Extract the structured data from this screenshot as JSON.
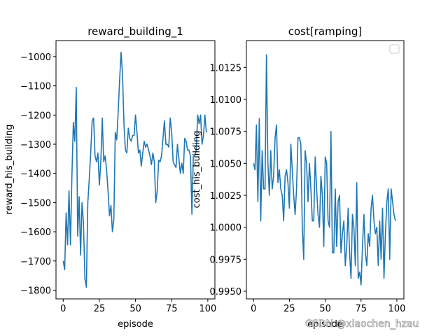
{
  "watermark": "CSDN @xiaochen_hzau",
  "chart_data": [
    {
      "type": "line",
      "title": "reward_building_1",
      "xlabel": "episode",
      "ylabel": "reward_his_building",
      "xlim": [
        -5,
        104.9
      ],
      "ylim": [
        -1830,
        -945
      ],
      "xticks": [
        0,
        25,
        50,
        75,
        100
      ],
      "xtick_labels": [
        "0",
        "25",
        "50",
        "75",
        "100"
      ],
      "yticks": [
        -1800,
        -1700,
        -1600,
        -1500,
        -1400,
        -1300,
        -1200,
        -1100,
        -1000
      ],
      "ytick_labels": [
        "−1800",
        "−1700",
        "−1600",
        "−1500",
        "−1400",
        "−1300",
        "−1200",
        "−1100",
        "−1000"
      ],
      "color": "#1f77b4",
      "series": [
        {
          "name": "reward_his_building",
          "x": [
            0,
            1,
            2,
            3,
            4,
            5,
            6,
            7,
            8,
            9,
            10,
            11,
            12,
            13,
            14,
            15,
            16,
            17,
            18,
            19,
            20,
            21,
            22,
            23,
            24,
            25,
            26,
            27,
            28,
            29,
            30,
            31,
            32,
            33,
            34,
            35,
            36,
            37,
            38,
            39,
            40,
            41,
            42,
            43,
            44,
            45,
            46,
            47,
            48,
            49,
            50,
            51,
            52,
            53,
            54,
            55,
            56,
            57,
            58,
            59,
            60,
            61,
            62,
            63,
            64,
            65,
            66,
            67,
            68,
            69,
            70,
            71,
            72,
            73,
            74,
            75,
            76,
            77,
            78,
            79,
            80,
            81,
            82,
            83,
            84,
            85,
            86,
            87,
            88,
            89,
            90,
            91,
            92,
            93,
            94,
            95,
            96,
            97,
            98,
            99
          ],
          "y": [
            -1700,
            -1730,
            -1535,
            -1645,
            -1460,
            -1645,
            -1410,
            -1225,
            -1290,
            -1105,
            -1615,
            -1480,
            -1680,
            -1500,
            -1570,
            -1760,
            -1790,
            -1500,
            -1420,
            -1330,
            -1220,
            -1210,
            -1340,
            -1360,
            -1330,
            -1440,
            -1360,
            -1210,
            -1360,
            -1340,
            -1390,
            -1460,
            -1545,
            -1510,
            -1600,
            -1560,
            -1260,
            -1285,
            -1190,
            -1080,
            -985,
            -1060,
            -1230,
            -1320,
            -1330,
            -1245,
            -1280,
            -1290,
            -1270,
            -1270,
            -1200,
            -1260,
            -1330,
            -1320,
            -1375,
            -1330,
            -1290,
            -1310,
            -1300,
            -1320,
            -1340,
            -1370,
            -1330,
            -1360,
            -1500,
            -1460,
            -1355,
            -1360,
            -1340,
            -1280,
            -1220,
            -1300,
            -1300,
            -1310,
            -1210,
            -1260,
            -1360,
            -1370,
            -1380,
            -1300,
            -1350,
            -1400,
            -1365,
            -1400,
            -1280,
            -1290,
            -1320,
            -1320,
            -1340,
            -1540,
            -1340,
            -1340,
            -1320,
            -1200,
            -1230,
            -1200,
            -1300,
            -1270,
            -1200,
            -1260
          ]
        }
      ]
    },
    {
      "type": "line",
      "title": "cost[ramping]",
      "xlabel": "episode",
      "ylabel": "cost_his_building",
      "xlim": [
        -5,
        104.9
      ],
      "ylim": [
        0.9944,
        1.0146
      ],
      "xticks": [
        0,
        25,
        50,
        75,
        100
      ],
      "xtick_labels": [
        "0",
        "25",
        "50",
        "75",
        "100"
      ],
      "yticks": [
        0.995,
        0.9975,
        1.0,
        1.0025,
        1.005,
        1.0075,
        1.01,
        1.0125
      ],
      "ytick_labels": [
        "0.9950",
        "0.9975",
        "1.0000",
        "1.0025",
        "1.0050",
        "1.0075",
        "1.0100",
        "1.0125"
      ],
      "legend": "top-right (empty)",
      "color": "#1f77b4",
      "series": [
        {
          "name": "cost_his_building",
          "x": [
            0,
            1,
            2,
            3,
            4,
            5,
            6,
            7,
            8,
            9,
            10,
            11,
            12,
            13,
            14,
            15,
            16,
            17,
            18,
            19,
            20,
            21,
            22,
            23,
            24,
            25,
            26,
            27,
            28,
            29,
            30,
            31,
            32,
            33,
            34,
            35,
            36,
            37,
            38,
            39,
            40,
            41,
            42,
            43,
            44,
            45,
            46,
            47,
            48,
            49,
            50,
            51,
            52,
            53,
            54,
            55,
            56,
            57,
            58,
            59,
            60,
            61,
            62,
            63,
            64,
            65,
            66,
            67,
            68,
            69,
            70,
            71,
            72,
            73,
            74,
            75,
            76,
            77,
            78,
            79,
            80,
            81,
            82,
            83,
            84,
            85,
            86,
            87,
            88,
            89,
            90,
            91,
            92,
            93,
            94,
            95,
            96,
            97,
            98,
            99
          ],
          "y": [
            1.005,
            1.0045,
            1.008,
            1.002,
            1.0085,
            1.0005,
            1.006,
            1.003,
            1.003,
            1.0135,
            1.005,
            1.0025,
            1.006,
            1.003,
            1.004,
            1.007,
            1.008,
            1.0035,
            1.0045,
            1.003,
            1.0025,
            1.0005,
            1.004,
            1.0045,
            1.0035,
            1.0015,
            1.0065,
            1.0045,
            1.0025,
            1.001,
            1.003,
            1.007,
            1.007,
            1.0065,
            1.0,
            0.9975,
            1.006,
            1.005,
            1.002,
            1.005,
            1.003,
            1.0005,
            1.0005,
            1.0055,
            1.003,
            1.001,
            1.0,
            1.004,
            1.0025,
            0.9985,
            1.0055,
            1.005,
            1.0005,
            1.0,
            1.0075,
            0.998,
            0.998,
            1.003,
            0.9985,
            1.002,
            1.0025,
            0.998,
            0.9995,
            1.0005,
            0.997,
            0.9985,
            1.0015,
            0.998,
            0.996,
            1.001,
            1.0,
            0.997,
            1.0035,
            0.996,
            0.9965,
            0.9955,
            0.9985,
            1.001,
            0.998,
            0.997,
            0.9995,
            0.9985,
            1.0015,
            1.0025,
            1.0005,
            0.9995,
            1.0,
            0.997,
            1.0005,
            0.9975,
            1.0015,
            0.996,
            0.9995,
            1.002,
            1.003,
            0.9975,
            1.003,
            1.002,
            1.001,
            1.0005
          ]
        }
      ]
    }
  ]
}
